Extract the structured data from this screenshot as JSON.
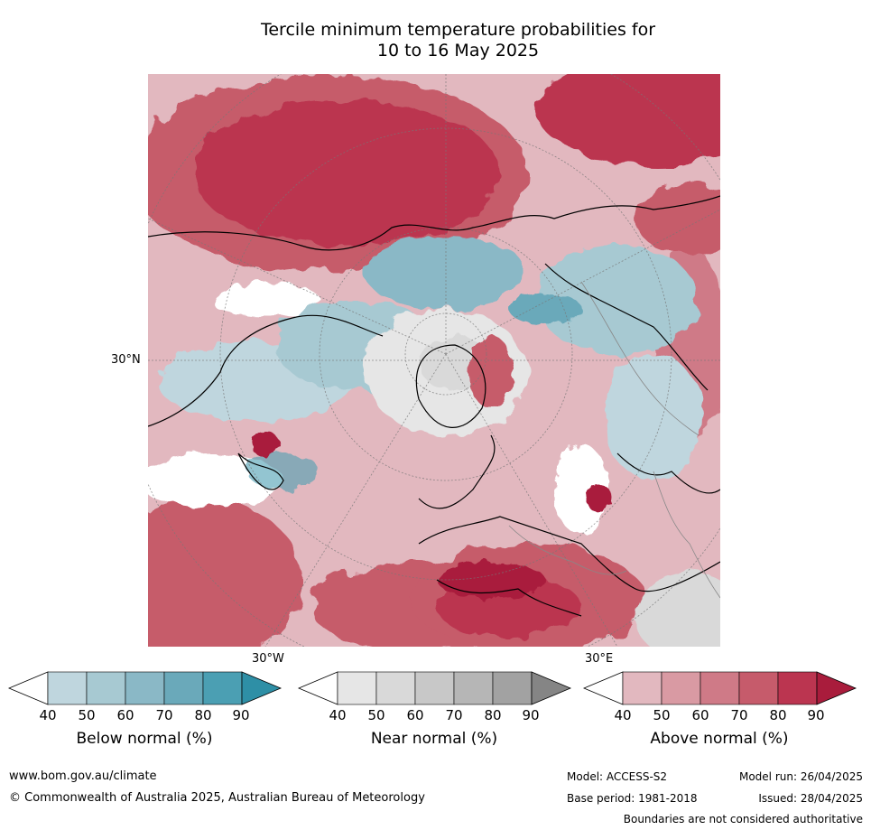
{
  "title_line1": "Tercile minimum temperature probabilities for",
  "title_line2": "10 to 16 May 2025",
  "map": {
    "lat_label": "30°N",
    "lon_label_west": "30°W",
    "lon_label_east": "30°E"
  },
  "colorbars": [
    {
      "label": "Below normal (%)",
      "ticks": [
        "40",
        "50",
        "60",
        "70",
        "80",
        "90"
      ],
      "colors": [
        "#ffffff",
        "#bfd6de",
        "#a7c9d2",
        "#8ab8c6",
        "#6aa9ba",
        "#4b9fb3",
        "#2e8fa6"
      ]
    },
    {
      "label": "Near normal (%)",
      "ticks": [
        "40",
        "50",
        "60",
        "70",
        "80",
        "90"
      ],
      "colors": [
        "#ffffff",
        "#e6e6e6",
        "#d9d9d9",
        "#c8c8c8",
        "#b6b6b6",
        "#a2a2a2",
        "#858585"
      ]
    },
    {
      "label": "Above normal (%)",
      "ticks": [
        "40",
        "50",
        "60",
        "70",
        "80",
        "90"
      ],
      "colors": [
        "#ffffff",
        "#e2b8bf",
        "#d99aa3",
        "#cf7a87",
        "#c65b6b",
        "#bb3550",
        "#a91c3c"
      ]
    }
  ],
  "footer": {
    "website": "www.bom.gov.au/climate",
    "copyright": "© Commonwealth of Australia 2025, Australian Bureau of Meteorology",
    "model": "Model: ACCESS-S2",
    "model_run": "Model run: 26/04/2025",
    "base_period": "Base period: 1981-2018",
    "issued": "Issued: 28/04/2025",
    "disclaimer": "Boundaries are not considered authoritative"
  }
}
